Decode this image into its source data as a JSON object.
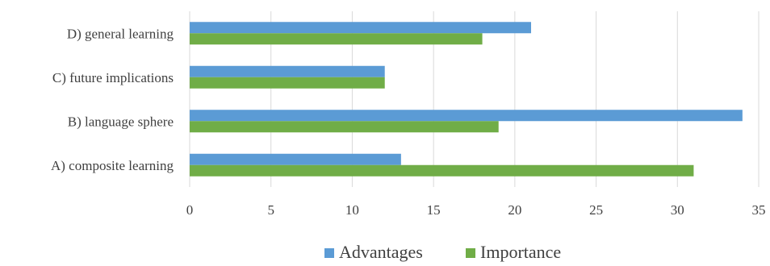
{
  "chart_data": {
    "type": "bar",
    "orientation": "horizontal",
    "categories": [
      "A) composite learning",
      "B) language sphere",
      "C) future implications",
      "D) general learning"
    ],
    "series": [
      {
        "name": "Advantages",
        "values": [
          13,
          34,
          12,
          21
        ],
        "color": "#5b9bd5"
      },
      {
        "name": "Importance",
        "values": [
          31,
          19,
          12,
          18
        ],
        "color": "#70ad47"
      }
    ],
    "xlim": [
      0,
      35
    ],
    "xticks": [
      0,
      5,
      10,
      15,
      20,
      25,
      30,
      35
    ],
    "grid": "vertical",
    "legend": "bottom-center"
  }
}
